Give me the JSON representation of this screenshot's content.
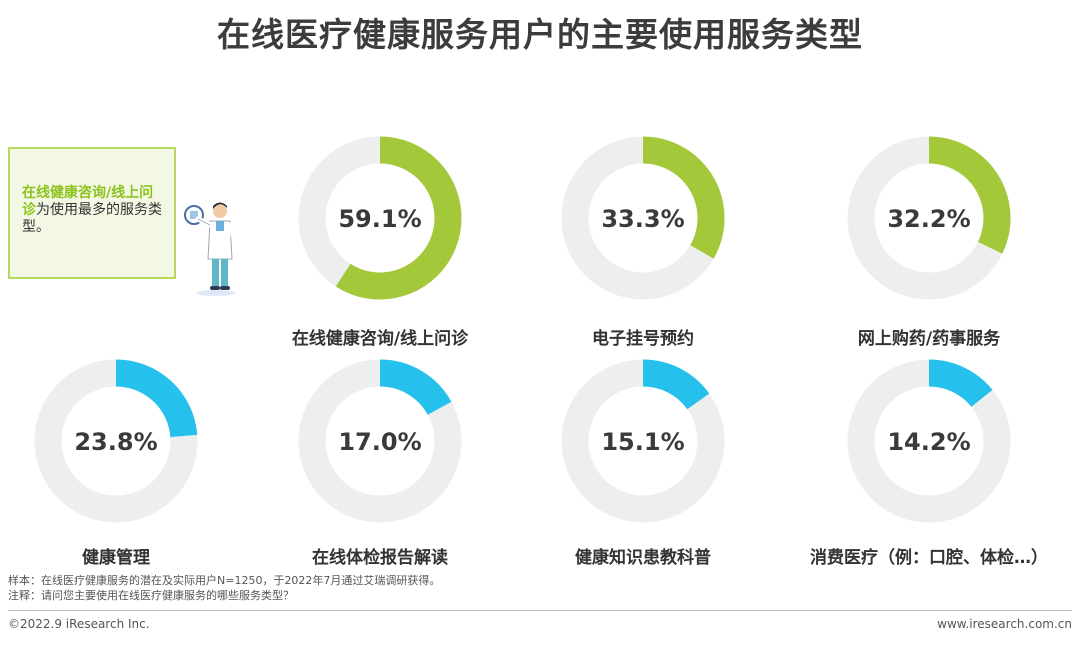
{
  "title": "在线医疗健康服务用户的主要使用服务类型",
  "callout": {
    "highlight": "在线健康咨询/线上问诊",
    "rest": "为使用最多的服务类型。"
  },
  "chart_data": {
    "type": "pie",
    "subtype": "donut-grid",
    "unit": "%",
    "categories": [
      "在线健康咨询/线上问诊",
      "电子挂号预约",
      "网上购药/药事服务",
      "健康管理",
      "在线体检报告解读",
      "健康知识患教科普",
      "消费医疗（例：口腔、体检…）"
    ],
    "values": [
      59.1,
      33.3,
      32.2,
      23.8,
      17.0,
      15.1,
      14.2
    ],
    "labels": [
      "59.1%",
      "33.3%",
      "32.2%",
      "23.8%",
      "17.0%",
      "15.1%",
      "14.2%"
    ],
    "colors": [
      "#a3c93a",
      "#a3c93a",
      "#a3c93a",
      "#25c1ec",
      "#25c1ec",
      "#25c1ec",
      "#25c1ec"
    ],
    "track_color": "#eeeeee"
  },
  "notes": {
    "sample": "样本：在线医疗健康服务的潜在及实际用户N=1250，于2022年7月通过艾瑞调研获得。",
    "remark": "注释：请问您主要使用在线医疗健康服务的哪些服务类型？"
  },
  "footer": {
    "left": "©2022.9 iResearch Inc.",
    "right": "www.iresearch.com.cn"
  }
}
